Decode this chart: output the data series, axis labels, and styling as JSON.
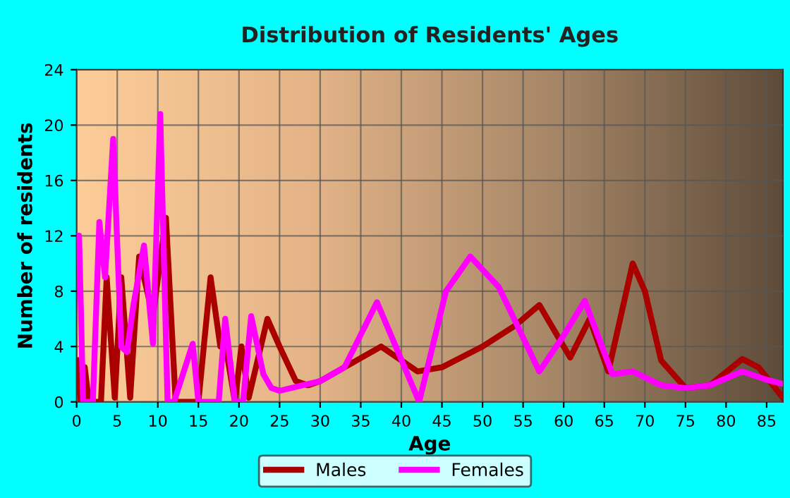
{
  "chart_data": {
    "type": "line",
    "title": "Distribution of Residents' Ages",
    "xlabel": "Age",
    "ylabel": "Number of residents",
    "xlim": [
      0,
      87
    ],
    "ylim": [
      0,
      24
    ],
    "xticks": [
      0,
      5,
      10,
      15,
      20,
      25,
      30,
      35,
      40,
      45,
      50,
      55,
      60,
      65,
      70,
      75,
      80,
      85
    ],
    "yticks": [
      0,
      4,
      8,
      12,
      16,
      20,
      24
    ],
    "grid": true,
    "legend": "bottom",
    "line_style": "solid",
    "series": [
      {
        "name": "Males",
        "color": "#aa0000",
        "x": [
          0,
          0.5,
          1,
          1.5,
          2,
          3,
          3.7,
          4.7,
          5.5,
          6.6,
          7.7,
          9.4,
          11,
          12.2,
          13,
          15,
          16.5,
          17.7,
          18.3,
          19.5,
          20.3,
          21.2,
          23.5,
          25,
          27,
          28.5,
          30,
          33,
          37.5,
          42,
          45,
          50,
          54,
          57,
          59,
          60.8,
          63.2,
          65.5,
          68.5,
          70,
          72,
          75,
          78,
          82,
          84,
          87
        ],
        "values": [
          3,
          0,
          2.5,
          0,
          0,
          0,
          9,
          0.3,
          9,
          0.3,
          10.5,
          6.2,
          13.3,
          0,
          0,
          0,
          9,
          4,
          4.2,
          0,
          4,
          0.3,
          6,
          4,
          1.5,
          1.2,
          1.5,
          2.5,
          4,
          2.2,
          2.5,
          4,
          5.5,
          7,
          5,
          3.2,
          6,
          2.2,
          10,
          8,
          3,
          1,
          1.2,
          3.1,
          2.5,
          0.3
        ]
      },
      {
        "name": "Females",
        "color": "#ff00ff",
        "x": [
          0,
          0.3,
          0.8,
          2,
          2.8,
          3.5,
          4.5,
          5.5,
          6.2,
          7,
          8.3,
          9.4,
          10.3,
          11.2,
          12,
          14.3,
          15,
          17.5,
          18.3,
          19.5,
          20.5,
          21.5,
          23,
          24,
          25,
          30,
          33,
          37,
          42.2,
          45.5,
          48.5,
          52,
          57,
          60,
          62.6,
          66,
          68.5,
          72,
          75,
          78,
          82,
          85,
          87
        ],
        "values": [
          12,
          12,
          0,
          0,
          13,
          9,
          19,
          4,
          3.6,
          7,
          11.3,
          4.2,
          20.8,
          0,
          0,
          4.2,
          0,
          0,
          6,
          0,
          0,
          6.2,
          2,
          1,
          0.8,
          1.5,
          2.5,
          7.2,
          0,
          8,
          10.5,
          8.3,
          2.2,
          4.8,
          7.3,
          2,
          2.2,
          1.2,
          1,
          1.2,
          2.2,
          1.6,
          1.3
        ]
      }
    ]
  }
}
